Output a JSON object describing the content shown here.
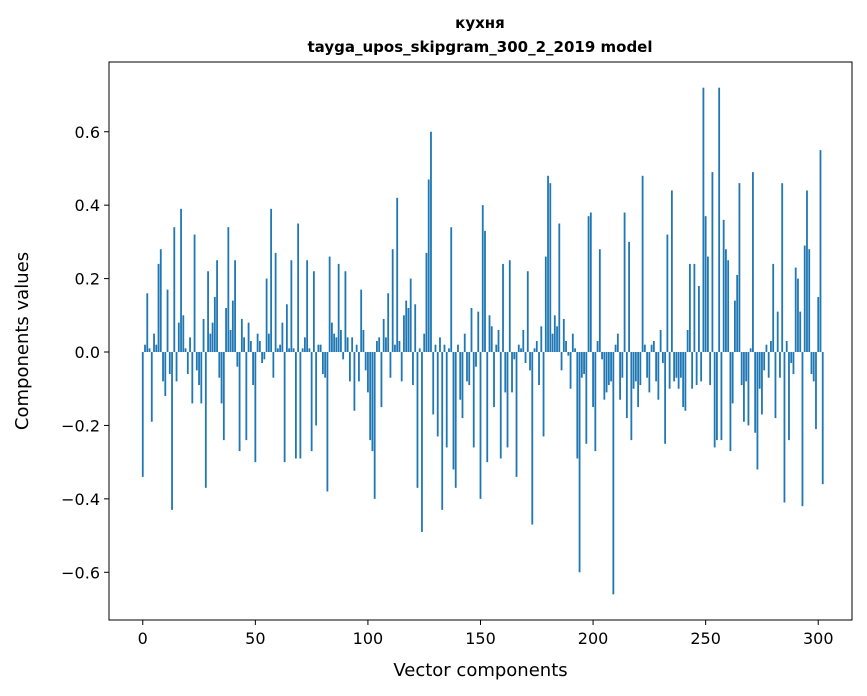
{
  "chart_data": {
    "type": "bar",
    "title": "кухня",
    "subtitle": "tayga_upos_skipgram_300_2_2019 model",
    "xlabel": "Vector components",
    "ylabel": "Components values",
    "xlim": [
      -15,
      315
    ],
    "ylim": [
      -0.73,
      0.79
    ],
    "xticks": [
      0,
      50,
      100,
      150,
      200,
      250,
      300
    ],
    "xtick_labels": [
      "0",
      "50",
      "100",
      "150",
      "200",
      "250",
      "300"
    ],
    "yticks": [
      -0.6,
      -0.4,
      -0.2,
      0.0,
      0.2,
      0.4,
      0.6
    ],
    "ytick_labels": [
      "−0.6",
      "−0.4",
      "−0.2",
      "0.0",
      "0.2",
      "0.4",
      "0.6"
    ],
    "grid": false,
    "bar_color": "#1f77b4",
    "series": [
      {
        "x_start": 0,
        "values": [
          -0.34,
          0.02,
          0.16,
          0.01,
          -0.19,
          0.05,
          0.02,
          0.24,
          0.28,
          -0.08,
          -0.12,
          0.17,
          -0.06,
          -0.43,
          0.34,
          -0.08,
          0.08,
          0.39,
          0.1,
          0.01,
          -0.06,
          0.04,
          -0.14,
          0.32,
          -0.05,
          -0.09,
          -0.14,
          0.09,
          -0.37,
          0.22,
          0.05,
          0.08,
          0.15,
          0.25,
          -0.07,
          -0.14,
          -0.24,
          0.12,
          0.34,
          0.06,
          0.14,
          0.25,
          -0.04,
          -0.27,
          0.09,
          0.04,
          -0.24,
          0.08,
          0.03,
          -0.09,
          -0.3,
          0.05,
          0.03,
          -0.03,
          -0.02,
          0.2,
          0.05,
          0.39,
          -0.07,
          0.27,
          0.01,
          0.02,
          0.08,
          -0.3,
          0.13,
          0.01,
          0.25,
          0.01,
          -0.29,
          0.35,
          -0.29,
          0.01,
          0.04,
          0.25,
          0.01,
          -0.27,
          0.22,
          -0.2,
          0.02,
          0.02,
          -0.06,
          -0.07,
          -0.38,
          0.26,
          0.08,
          0.05,
          0.04,
          0.24,
          0.06,
          -0.02,
          0.22,
          0.04,
          -0.08,
          0.04,
          -0.16,
          0.02,
          -0.08,
          0.17,
          0.06,
          -0.05,
          -0.11,
          -0.24,
          -0.27,
          -0.4,
          0.03,
          0.04,
          -0.15,
          0.09,
          0.04,
          0.16,
          -0.07,
          0.28,
          0.02,
          0.42,
          0.03,
          -0.08,
          0.1,
          0.14,
          0.12,
          0.2,
          -0.09,
          0.13,
          -0.37,
          0.01,
          -0.49,
          0.05,
          0.27,
          0.47,
          0.6,
          -0.17,
          0.02,
          -0.23,
          0.04,
          -0.43,
          0.02,
          -0.26,
          0.01,
          0.34,
          -0.32,
          -0.37,
          0.02,
          -0.13,
          -0.18,
          0.05,
          -0.08,
          -0.09,
          0.12,
          -0.26,
          -0.04,
          0.11,
          -0.4,
          0.4,
          0.33,
          -0.3,
          0.1,
          0.07,
          -0.15,
          0.02,
          0.06,
          -0.29,
          0.24,
          -0.11,
          -0.26,
          0.25,
          -0.11,
          -0.02,
          -0.34,
          0.02,
          0.01,
          0.06,
          -0.03,
          0.22,
          -0.05,
          -0.47,
          0.01,
          0.03,
          -0.09,
          0.07,
          -0.23,
          0.26,
          0.48,
          0.46,
          0.05,
          0.1,
          0.07,
          0.35,
          -0.05,
          0.09,
          0.03,
          -0.01,
          -0.1,
          0.05,
          0.01,
          -0.29,
          -0.6,
          -0.07,
          -0.06,
          -0.25,
          0.37,
          0.38,
          -0.15,
          -0.27,
          0.03,
          0.28,
          -0.02,
          -0.13,
          -0.11,
          -0.09,
          -0.08,
          -0.66,
          0.02,
          0.05,
          -0.13,
          -0.07,
          0.38,
          -0.18,
          0.3,
          -0.24,
          -0.1,
          -0.08,
          -0.15,
          -0.09,
          0.48,
          0.02,
          -0.07,
          -0.11,
          0.02,
          0.03,
          -0.08,
          -0.13,
          0.06,
          -0.03,
          -0.25,
          0.32,
          -0.1,
          0.44,
          -0.08,
          -0.07,
          -0.1,
          -0.07,
          -0.15,
          -0.16,
          0.06,
          0.24,
          -0.1,
          0.24,
          -0.09,
          0.18,
          -0.08,
          0.72,
          0.37,
          0.26,
          -0.09,
          0.49,
          -0.26,
          -0.24,
          0.72,
          -0.24,
          0.36,
          0.28,
          0.25,
          -0.27,
          -0.14,
          0.14,
          0.21,
          0.46,
          -0.09,
          -0.19,
          -0.08,
          -0.2,
          0.01,
          0.49,
          -0.22,
          -0.32,
          -0.1,
          -0.17,
          -0.05,
          0.02,
          -0.07,
          0.03,
          0.24,
          -0.18,
          0.11,
          -0.07,
          0.46,
          -0.41,
          0.03,
          -0.24,
          -0.03,
          -0.06,
          0.23,
          0.2,
          0.11,
          -0.42,
          0.29,
          0.44,
          0.28,
          -0.06,
          -0.08,
          -0.21,
          0.15,
          0.55,
          -0.36
        ]
      }
    ]
  }
}
